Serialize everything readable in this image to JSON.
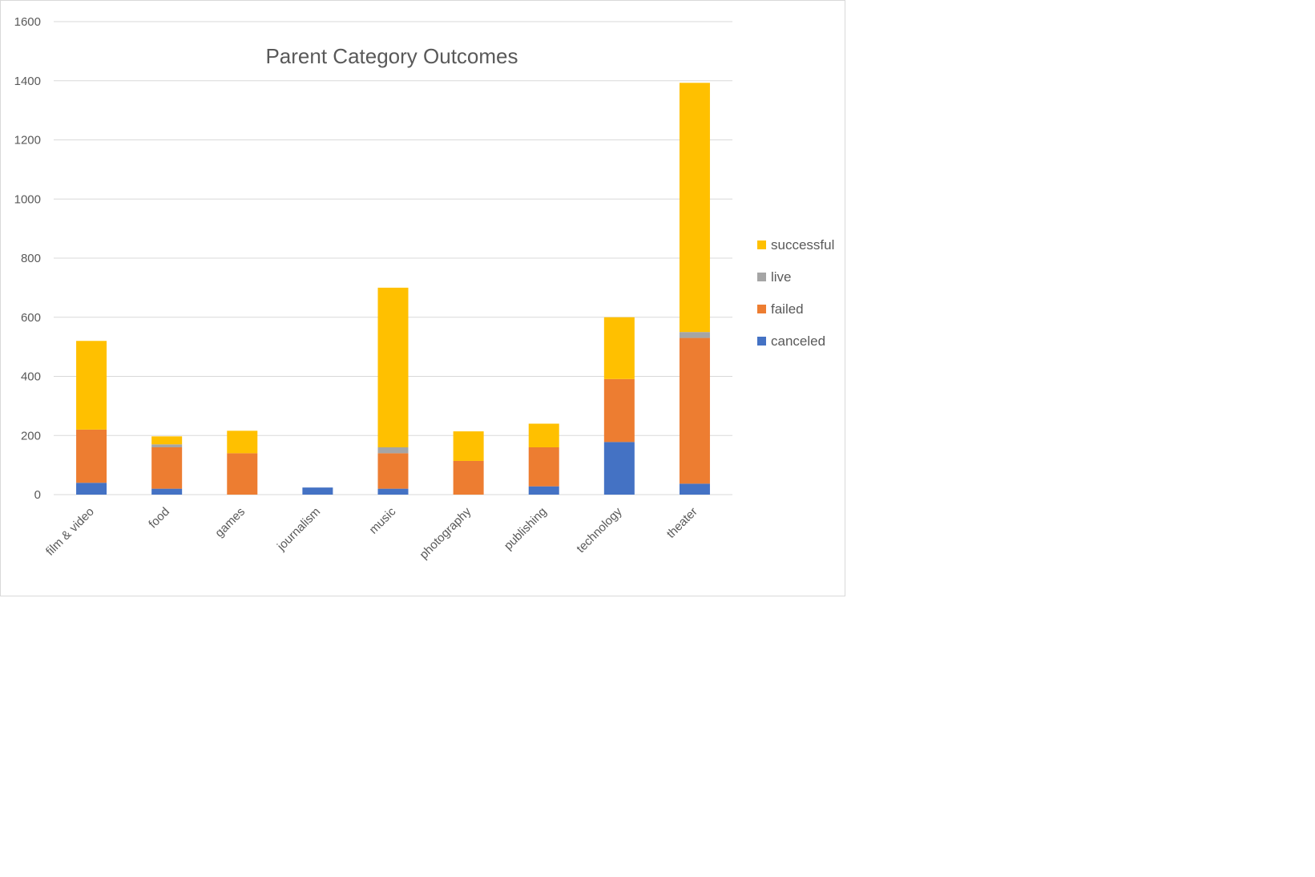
{
  "chart_data": {
    "type": "bar",
    "stacked": true,
    "title": "Parent Category Outcomes",
    "xlabel": "",
    "ylabel": "",
    "ylim": [
      0,
      1600
    ],
    "yticks": [
      0,
      200,
      400,
      600,
      800,
      1000,
      1200,
      1400,
      1600
    ],
    "grid": true,
    "legend_position": "right",
    "categories": [
      "film & video",
      "food",
      "games",
      "journalism",
      "music",
      "photography",
      "publishing",
      "technology",
      "theater"
    ],
    "series": [
      {
        "name": "canceled",
        "color": "#4472C4",
        "values": [
          40,
          20,
          0,
          24,
          20,
          0,
          28,
          178,
          37
        ]
      },
      {
        "name": "failed",
        "color": "#ED7D31",
        "values": [
          180,
          140,
          140,
          0,
          120,
          114,
          132,
          213,
          493
        ]
      },
      {
        "name": "live",
        "color": "#A5A5A5",
        "values": [
          0,
          10,
          0,
          0,
          20,
          0,
          0,
          0,
          20
        ]
      },
      {
        "name": "successful",
        "color": "#FFC000",
        "values": [
          300,
          27,
          76,
          0,
          540,
          100,
          80,
          209,
          843
        ]
      }
    ]
  }
}
